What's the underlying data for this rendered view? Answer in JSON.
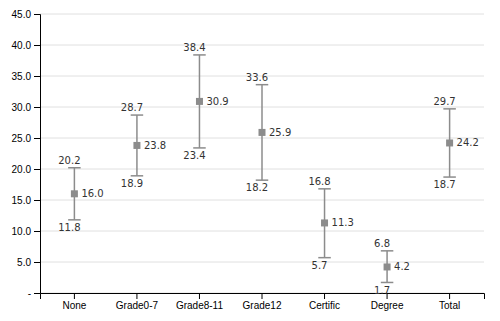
{
  "chart_data": {
    "type": "range",
    "categories": [
      "None",
      "Grade0-7",
      "Grade8-11",
      "Grade12",
      "Certific",
      "Degree",
      "Total"
    ],
    "high": [
      20.2,
      28.7,
      38.4,
      33.6,
      16.8,
      6.8,
      29.7
    ],
    "values": [
      16.0,
      23.8,
      30.9,
      25.9,
      11.3,
      4.2,
      24.2
    ],
    "value_labels": [
      "16.0",
      "23.8",
      "30.9",
      "25.9",
      "11.3",
      "4.2",
      "24.2"
    ],
    "low": [
      11.8,
      18.9,
      23.4,
      18.2,
      5.7,
      1.7,
      18.7
    ],
    "color": "#8c8c8c",
    "ylim": [
      0,
      45
    ],
    "yticks": [
      {
        "value": 0,
        "label": "-"
      },
      {
        "value": 5.0,
        "label": "5.0"
      },
      {
        "value": 10.0,
        "label": "10.0"
      },
      {
        "value": 15.0,
        "label": "15.0"
      },
      {
        "value": 20.0,
        "label": "20.0"
      },
      {
        "value": 25.0,
        "label": "25.0"
      },
      {
        "value": 30.0,
        "label": "30.0"
      },
      {
        "value": 35.0,
        "label": "35.0"
      },
      {
        "value": 40.0,
        "label": "40.0"
      },
      {
        "value": 45.0,
        "label": "45.0"
      }
    ],
    "grid": true,
    "data_labels": true
  }
}
